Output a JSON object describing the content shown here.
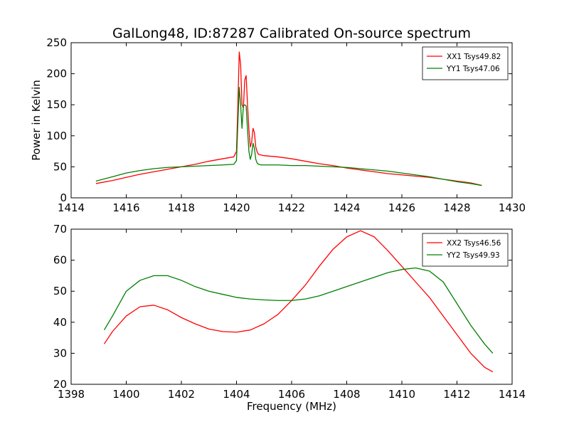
{
  "chart_data": [
    {
      "type": "line",
      "title": "GalLong48, ID:87287 Calibrated On-source spectrum",
      "xlabel": "",
      "ylabel": "Power in Kelvin",
      "xlim": [
        1414,
        1430
      ],
      "ylim": [
        0,
        250
      ],
      "xticks": [
        "1414",
        "1416",
        "1418",
        "1420",
        "1422",
        "1424",
        "1426",
        "1428",
        "1430"
      ],
      "yticks": [
        "0",
        "50",
        "100",
        "150",
        "200",
        "250"
      ],
      "legend_position": "top-right",
      "series": [
        {
          "name": "XX1 Tsys49.82",
          "color": "#ff0000",
          "x": [
            1414.9,
            1415.5,
            1416.0,
            1416.5,
            1417.0,
            1417.5,
            1418.0,
            1418.5,
            1419.0,
            1419.5,
            1419.9,
            1420.0,
            1420.05,
            1420.1,
            1420.15,
            1420.2,
            1420.25,
            1420.3,
            1420.35,
            1420.4,
            1420.45,
            1420.5,
            1420.55,
            1420.6,
            1420.65,
            1420.7,
            1420.75,
            1420.8,
            1420.9,
            1421.0,
            1421.5,
            1422.0,
            1422.5,
            1423.0,
            1423.5,
            1424.0,
            1424.5,
            1425.0,
            1425.5,
            1426.0,
            1426.5,
            1427.0,
            1427.5,
            1428.0,
            1428.5,
            1428.9
          ],
          "y": [
            23,
            28,
            33,
            38,
            42,
            46,
            50,
            54,
            59,
            63,
            66,
            75,
            150,
            235,
            215,
            150,
            145,
            190,
            197,
            150,
            110,
            82,
            90,
            112,
            105,
            82,
            74,
            70,
            69,
            68,
            66,
            63,
            59,
            55,
            52,
            48,
            45,
            42,
            39,
            37,
            35,
            33,
            30,
            27,
            24,
            20
          ]
        },
        {
          "name": "YY1 Tsys47.06",
          "color": "#008000",
          "x": [
            1414.9,
            1415.5,
            1416.0,
            1416.5,
            1417.0,
            1417.5,
            1418.0,
            1418.5,
            1419.0,
            1419.5,
            1419.9,
            1420.0,
            1420.05,
            1420.1,
            1420.15,
            1420.2,
            1420.25,
            1420.3,
            1420.35,
            1420.4,
            1420.45,
            1420.5,
            1420.55,
            1420.6,
            1420.65,
            1420.7,
            1420.75,
            1420.8,
            1420.9,
            1421.0,
            1421.5,
            1422.0,
            1422.5,
            1423.0,
            1423.5,
            1424.0,
            1424.5,
            1425.0,
            1425.5,
            1426.0,
            1426.5,
            1427.0,
            1427.5,
            1428.0,
            1428.5,
            1428.9
          ],
          "y": [
            27,
            34,
            40,
            44,
            47,
            49,
            50,
            51,
            52,
            53,
            54,
            60,
            120,
            178,
            150,
            112,
            148,
            150,
            148,
            110,
            75,
            62,
            70,
            88,
            80,
            62,
            56,
            54,
            53,
            53,
            53,
            52,
            52,
            51,
            50,
            49,
            47,
            45,
            43,
            40,
            37,
            34,
            30,
            26,
            23,
            20
          ]
        }
      ]
    },
    {
      "type": "line",
      "title": "",
      "xlabel": "Frequency (MHz)",
      "ylabel": "",
      "xlim": [
        1398,
        1414
      ],
      "ylim": [
        20,
        70
      ],
      "xticks": [
        "1398",
        "1400",
        "1402",
        "1404",
        "1406",
        "1408",
        "1410",
        "1412",
        "1414"
      ],
      "yticks": [
        "20",
        "30",
        "40",
        "50",
        "60",
        "70"
      ],
      "legend_position": "top-right",
      "series": [
        {
          "name": "XX2 Tsys46.56",
          "color": "#ff0000",
          "x": [
            1399.2,
            1399.5,
            1400.0,
            1400.5,
            1401.0,
            1401.5,
            1402.0,
            1402.5,
            1403.0,
            1403.5,
            1404.0,
            1404.5,
            1405.0,
            1405.5,
            1406.0,
            1406.5,
            1407.0,
            1407.5,
            1408.0,
            1408.5,
            1409.0,
            1409.5,
            1410.0,
            1410.5,
            1411.0,
            1411.5,
            1412.0,
            1412.5,
            1413.0,
            1413.3
          ],
          "y": [
            33,
            37,
            42,
            45,
            45.5,
            44,
            41.5,
            39.5,
            37.8,
            37,
            36.8,
            37.5,
            39.5,
            42.5,
            47,
            52,
            58,
            63.5,
            67.5,
            69.5,
            67.5,
            63,
            58,
            53,
            48,
            42,
            36,
            30,
            25.5,
            24
          ]
        },
        {
          "name": "YY2 Tsys49.93",
          "color": "#008000",
          "x": [
            1399.2,
            1399.5,
            1400.0,
            1400.5,
            1401.0,
            1401.5,
            1402.0,
            1402.5,
            1403.0,
            1403.5,
            1404.0,
            1404.5,
            1405.0,
            1405.5,
            1406.0,
            1406.5,
            1407.0,
            1407.5,
            1408.0,
            1408.5,
            1409.0,
            1409.5,
            1410.0,
            1410.5,
            1411.0,
            1411.5,
            1412.0,
            1412.5,
            1413.0,
            1413.3
          ],
          "y": [
            37.5,
            42,
            50,
            53.5,
            55,
            55,
            53.5,
            51.5,
            50,
            49,
            48,
            47.5,
            47.2,
            47,
            47,
            47.5,
            48.5,
            50,
            51.5,
            53,
            54.5,
            56,
            57,
            57.5,
            56.5,
            53,
            46,
            39,
            33,
            30
          ]
        }
      ]
    }
  ]
}
